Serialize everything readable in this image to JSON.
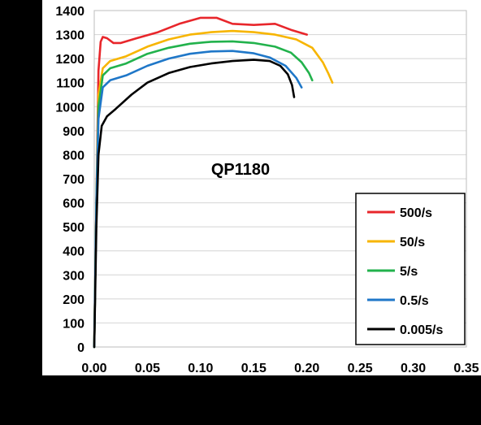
{
  "chart_data": {
    "type": "line",
    "title": "QP1180",
    "xlabel": "",
    "ylabel": "",
    "xlim": [
      0,
      0.35
    ],
    "ylim": [
      0,
      1400
    ],
    "x_ticks": [
      "0.00",
      "0.05",
      "0.10",
      "0.15",
      "0.20",
      "0.25",
      "0.30",
      "0.35"
    ],
    "y_ticks": [
      "0",
      "100",
      "200",
      "300",
      "400",
      "500",
      "600",
      "700",
      "800",
      "900",
      "1000",
      "1100",
      "1200",
      "1300",
      "1400"
    ],
    "grid": "horizontal",
    "legend_position": "bottom-right",
    "series": [
      {
        "name": "500/s",
        "color": "#e8262b",
        "points": [
          [
            0.0,
            0
          ],
          [
            0.002,
            600
          ],
          [
            0.004,
            1150
          ],
          [
            0.006,
            1270
          ],
          [
            0.008,
            1290
          ],
          [
            0.012,
            1285
          ],
          [
            0.018,
            1265
          ],
          [
            0.025,
            1265
          ],
          [
            0.04,
            1285
          ],
          [
            0.06,
            1310
          ],
          [
            0.08,
            1345
          ],
          [
            0.1,
            1370
          ],
          [
            0.115,
            1370
          ],
          [
            0.13,
            1345
          ],
          [
            0.15,
            1340
          ],
          [
            0.17,
            1345
          ],
          [
            0.185,
            1320
          ],
          [
            0.2,
            1300
          ]
        ]
      },
      {
        "name": "50/s",
        "color": "#f7b500",
        "points": [
          [
            0.0,
            0
          ],
          [
            0.002,
            600
          ],
          [
            0.004,
            1050
          ],
          [
            0.008,
            1160
          ],
          [
            0.015,
            1190
          ],
          [
            0.03,
            1210
          ],
          [
            0.05,
            1250
          ],
          [
            0.07,
            1280
          ],
          [
            0.09,
            1300
          ],
          [
            0.11,
            1310
          ],
          [
            0.13,
            1315
          ],
          [
            0.15,
            1310
          ],
          [
            0.17,
            1300
          ],
          [
            0.19,
            1280
          ],
          [
            0.205,
            1245
          ],
          [
            0.215,
            1185
          ],
          [
            0.22,
            1140
          ],
          [
            0.224,
            1100
          ]
        ]
      },
      {
        "name": "5/s",
        "color": "#22b24c",
        "points": [
          [
            0.0,
            0
          ],
          [
            0.002,
            600
          ],
          [
            0.004,
            1000
          ],
          [
            0.008,
            1130
          ],
          [
            0.015,
            1160
          ],
          [
            0.03,
            1180
          ],
          [
            0.05,
            1220
          ],
          [
            0.07,
            1245
          ],
          [
            0.09,
            1262
          ],
          [
            0.11,
            1270
          ],
          [
            0.13,
            1272
          ],
          [
            0.15,
            1265
          ],
          [
            0.17,
            1250
          ],
          [
            0.185,
            1225
          ],
          [
            0.195,
            1185
          ],
          [
            0.202,
            1140
          ],
          [
            0.205,
            1110
          ]
        ]
      },
      {
        "name": "0.5/s",
        "color": "#1f77c8",
        "points": [
          [
            0.0,
            0
          ],
          [
            0.002,
            600
          ],
          [
            0.004,
            950
          ],
          [
            0.008,
            1080
          ],
          [
            0.015,
            1110
          ],
          [
            0.03,
            1130
          ],
          [
            0.05,
            1170
          ],
          [
            0.07,
            1200
          ],
          [
            0.09,
            1220
          ],
          [
            0.11,
            1230
          ],
          [
            0.13,
            1232
          ],
          [
            0.15,
            1222
          ],
          [
            0.165,
            1205
          ],
          [
            0.18,
            1170
          ],
          [
            0.19,
            1120
          ],
          [
            0.195,
            1080
          ]
        ]
      },
      {
        "name": "0.005/s",
        "color": "#000000",
        "points": [
          [
            0.0,
            0
          ],
          [
            0.002,
            500
          ],
          [
            0.004,
            800
          ],
          [
            0.007,
            920
          ],
          [
            0.012,
            960
          ],
          [
            0.02,
            990
          ],
          [
            0.035,
            1050
          ],
          [
            0.05,
            1100
          ],
          [
            0.07,
            1140
          ],
          [
            0.09,
            1165
          ],
          [
            0.11,
            1180
          ],
          [
            0.13,
            1190
          ],
          [
            0.15,
            1195
          ],
          [
            0.165,
            1190
          ],
          [
            0.175,
            1170
          ],
          [
            0.182,
            1135
          ],
          [
            0.186,
            1090
          ],
          [
            0.188,
            1040
          ]
        ]
      }
    ]
  }
}
